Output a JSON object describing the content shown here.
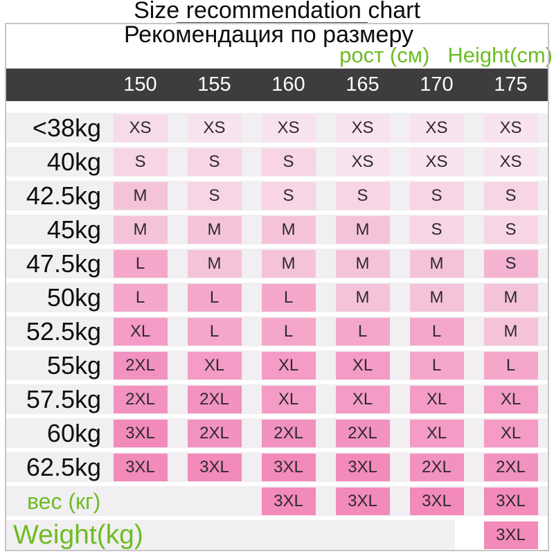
{
  "header": {
    "title": "Size recommendation chart",
    "subtitle": "Рекомендация по размеру",
    "height_label_ru": "рост (см)",
    "height_label_en": "Height(cm)"
  },
  "chart_data": {
    "type": "table",
    "title": "Size recommendation chart",
    "columns_height_cm": [
      "150",
      "155",
      "160",
      "165",
      "170",
      "175"
    ],
    "rows": [
      {
        "label": "<38kg",
        "label_style": "default",
        "cells": [
          "XS",
          "XS",
          "XS",
          "XS",
          "XS",
          "XS"
        ]
      },
      {
        "label": "40kg",
        "label_style": "default",
        "cells": [
          "S",
          "S",
          "S",
          "XS",
          "XS",
          "XS"
        ]
      },
      {
        "label": "42.5kg",
        "label_style": "default",
        "cells": [
          "M",
          "S",
          "S",
          "S",
          "S",
          "S"
        ]
      },
      {
        "label": "45kg",
        "label_style": "default",
        "cells": [
          "M",
          "M",
          "M",
          "M",
          "S",
          "S"
        ]
      },
      {
        "label": "47.5kg",
        "label_style": "default",
        "cells": [
          "L",
          "M",
          "M",
          "M",
          "M",
          "S"
        ]
      },
      {
        "label": "50kg",
        "label_style": "default",
        "cells": [
          "L",
          "L",
          "L",
          "M",
          "M",
          "M"
        ]
      },
      {
        "label": "52.5kg",
        "label_style": "default",
        "cells": [
          "XL",
          "L",
          "L",
          "L",
          "L",
          "M"
        ]
      },
      {
        "label": "55kg",
        "label_style": "default",
        "cells": [
          "2XL",
          "XL",
          "XL",
          "XL",
          "L",
          "L"
        ]
      },
      {
        "label": "57.5kg",
        "label_style": "default",
        "cells": [
          "2XL",
          "2XL",
          "XL",
          "XL",
          "XL",
          "XL"
        ]
      },
      {
        "label": "60kg",
        "label_style": "default",
        "cells": [
          "3XL",
          "2XL",
          "2XL",
          "2XL",
          "XL",
          "XL"
        ]
      },
      {
        "label": "62.5kg",
        "label_style": "default",
        "cells": [
          "3XL",
          "3XL",
          "3XL",
          "3XL",
          "2XL",
          "2XL"
        ]
      },
      {
        "label": "вес (кг)",
        "label_style": "green",
        "cells": [
          "",
          "",
          "3XL",
          "3XL",
          "3XL",
          "3XL"
        ]
      },
      {
        "label": "Weight(kg)",
        "label_style": "green-large",
        "cells": [
          "",
          "",
          "",
          "",
          "",
          "3XL"
        ]
      }
    ]
  },
  "colors": {
    "accent_green": "#6cbd22",
    "header_bar_bg": "#3e3c3e",
    "header_text": "#ffffff",
    "row_band": "#f1eff1",
    "size_fill": {
      "XS": "#f8e2ee",
      "S": "#f7d5e5",
      "M": "#f4c3da",
      "L": "#f5a7ca",
      "XL": "#f49cc5",
      "2XL": "#f292c0",
      "3XL": "#f28aba"
    }
  },
  "cell_fill_overrides": {
    "0-0": "#f6dbe9",
    "4-5": "#f4b4d1"
  }
}
